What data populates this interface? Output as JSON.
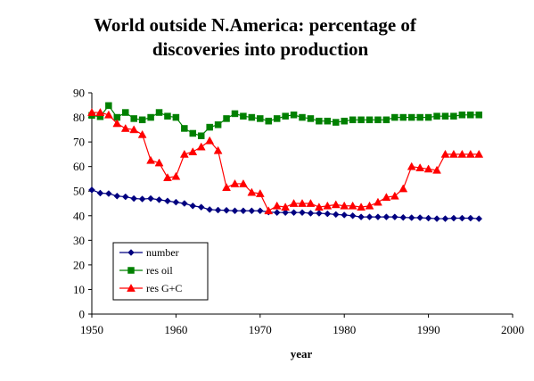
{
  "chart_data": {
    "type": "line",
    "title": [
      "World outside N.America: percentage of",
      "discoveries into production"
    ],
    "xlabel": "year",
    "ylabel": "",
    "xlim": [
      1950,
      2000
    ],
    "ylim": [
      0,
      90
    ],
    "xticks": [
      1950,
      1960,
      1970,
      1980,
      1990,
      2000
    ],
    "yticks": [
      0,
      10,
      20,
      30,
      40,
      50,
      60,
      70,
      80,
      90
    ],
    "grid": false,
    "legend_position": "bottom-left",
    "series": [
      {
        "name": "number",
        "color": "#000080",
        "marker": "diamond",
        "x": [
          1950,
          1951,
          1952,
          1953,
          1954,
          1955,
          1956,
          1957,
          1958,
          1959,
          1960,
          1961,
          1962,
          1963,
          1964,
          1965,
          1966,
          1967,
          1968,
          1969,
          1970,
          1971,
          1972,
          1973,
          1974,
          1975,
          1976,
          1977,
          1978,
          1979,
          1980,
          1981,
          1982,
          1983,
          1984,
          1985,
          1986,
          1987,
          1988,
          1989,
          1990,
          1991,
          1992,
          1993,
          1994,
          1995,
          1996
        ],
        "values": [
          50.5,
          49.2,
          49.0,
          48.0,
          47.7,
          47.0,
          46.8,
          47.0,
          46.5,
          46.0,
          45.5,
          45.0,
          44.0,
          43.5,
          42.5,
          42.3,
          42.2,
          42.0,
          42.0,
          42.0,
          42.0,
          41.5,
          41.3,
          41.3,
          41.3,
          41.3,
          41.0,
          41.0,
          40.8,
          40.5,
          40.3,
          40.0,
          39.5,
          39.5,
          39.5,
          39.5,
          39.5,
          39.3,
          39.2,
          39.2,
          39.0,
          38.8,
          38.8,
          39.0,
          39.0,
          39.0,
          38.8
        ]
      },
      {
        "name": "res oil",
        "color": "#008000",
        "marker": "square",
        "x": [
          1950,
          1951,
          1952,
          1953,
          1954,
          1955,
          1956,
          1957,
          1958,
          1959,
          1960,
          1961,
          1962,
          1963,
          1964,
          1965,
          1966,
          1967,
          1968,
          1969,
          1970,
          1971,
          1972,
          1973,
          1974,
          1975,
          1976,
          1977,
          1978,
          1979,
          1980,
          1981,
          1982,
          1983,
          1984,
          1985,
          1986,
          1987,
          1988,
          1989,
          1990,
          1991,
          1992,
          1993,
          1994,
          1995,
          1996
        ],
        "values": [
          80.8,
          80.3,
          84.8,
          80.0,
          82.0,
          79.5,
          79.0,
          80.0,
          82.0,
          80.5,
          80.0,
          75.5,
          73.5,
          72.5,
          76.0,
          77.0,
          79.5,
          81.5,
          80.5,
          80.0,
          79.5,
          78.5,
          79.5,
          80.5,
          81.0,
          80.0,
          79.5,
          78.5,
          78.5,
          78.0,
          78.5,
          79.0,
          79.0,
          79.0,
          79.0,
          79.0,
          80.0,
          80.0,
          80.0,
          80.0,
          80.0,
          80.5,
          80.5,
          80.5,
          81.0,
          81.0,
          81.0
        ]
      },
      {
        "name": "res G+C",
        "color": "#ff0000",
        "marker": "triangle",
        "x": [
          1950,
          1951,
          1952,
          1953,
          1954,
          1955,
          1956,
          1957,
          1958,
          1959,
          1960,
          1961,
          1962,
          1963,
          1964,
          1965,
          1966,
          1967,
          1968,
          1969,
          1970,
          1971,
          1972,
          1973,
          1974,
          1975,
          1976,
          1977,
          1978,
          1979,
          1980,
          1981,
          1982,
          1983,
          1984,
          1985,
          1986,
          1987,
          1988,
          1989,
          1990,
          1991,
          1992,
          1993,
          1994,
          1995,
          1996
        ],
        "values": [
          82.0,
          82.0,
          81.0,
          77.5,
          75.5,
          75.0,
          73.0,
          62.5,
          61.5,
          55.5,
          56.0,
          65.0,
          66.0,
          68.0,
          70.5,
          66.5,
          51.5,
          53.0,
          53.0,
          49.5,
          49.0,
          42.0,
          44.0,
          43.5,
          45.0,
          45.0,
          45.0,
          43.5,
          44.0,
          44.5,
          44.0,
          44.0,
          43.5,
          44.0,
          45.5,
          47.5,
          48.0,
          51.0,
          60.0,
          59.5,
          59.0,
          58.5,
          65.0,
          65.0,
          65.0,
          65.0,
          65.0
        ]
      }
    ]
  }
}
